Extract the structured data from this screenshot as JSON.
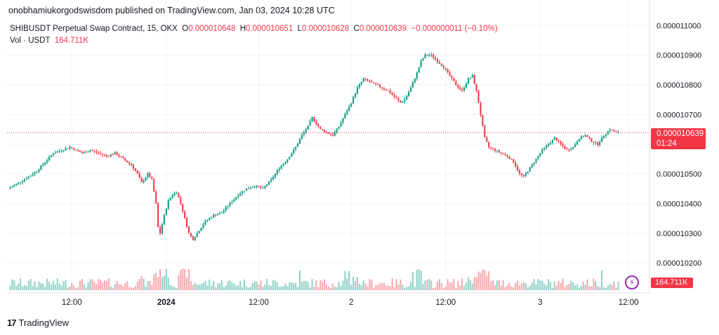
{
  "header": {
    "publisher": "onobhamiukorgodswisdom published on TradingView.com, Jan 03, 2024 10:28 UTC"
  },
  "legend": {
    "symbol": "SHIBUSDT Perpetual Swap Contract, 15, OKX",
    "o_label": "O",
    "o": "0.000010648",
    "h_label": "H",
    "h": "0.000010651",
    "l_label": "L",
    "l": "0.000010628",
    "c_label": "C",
    "c": "0.000010639",
    "change": "−0.000000011 (−0.10%)",
    "vol_label": "Vol · USDT",
    "vol": "164.711K"
  },
  "price_tag": {
    "price": "0.000010639",
    "countdown": "01:24"
  },
  "volume_tag": "164.711K",
  "brand": {
    "logo": "17",
    "name": "TradingView"
  },
  "colors": {
    "up": "#089981",
    "down": "#f23645",
    "vol_up": "#8fd2c8",
    "vol_down": "#f7a8ae",
    "grid": "#f0f3fa",
    "accent": "#9c27b0"
  },
  "icons": {
    "flash": "lightning-bolt-icon"
  },
  "chart_data": {
    "type": "candlestick",
    "x_ticks": [
      "12:00",
      "2024",
      "12:00",
      "2",
      "12:00",
      "3",
      "12:00"
    ],
    "y_ticks": [
      "0.000010200",
      "0.000010300",
      "0.000010400",
      "0.000010500",
      "0.000010600",
      "0.000010700",
      "0.000010800",
      "0.000010900",
      "0.000011000"
    ],
    "ylim": [
      1.0165e-05,
      1.1015e-05
    ],
    "grid": true,
    "last_price": 1.0639e-05,
    "price_path": [
      [
        0,
        1.045e-05
      ],
      [
        5,
        1.047e-05
      ],
      [
        10,
        1.049e-05
      ],
      [
        14,
        1.051e-05
      ],
      [
        18,
        1.054e-05
      ],
      [
        22,
        1.057e-05
      ],
      [
        26,
        1.058e-05
      ],
      [
        30,
        1.059e-05
      ],
      [
        36,
        1.057e-05
      ],
      [
        40,
        1.058e-05
      ],
      [
        44,
        1.057e-05
      ],
      [
        48,
        1.056e-05
      ],
      [
        52,
        1.057e-05
      ],
      [
        56,
        1.055e-05
      ],
      [
        60,
        1.053e-05
      ],
      [
        63,
        1.05e-05
      ],
      [
        65,
        1.047e-05
      ],
      [
        68,
        1.05e-05
      ],
      [
        70,
        1.048e-05
      ],
      [
        72,
        1.04e-05
      ],
      [
        73,
        1.032e-05
      ],
      [
        74,
        1.03e-05
      ],
      [
        76,
        1.036e-05
      ],
      [
        78,
        1.041e-05
      ],
      [
        80,
        1.043e-05
      ],
      [
        82,
        1.044e-05
      ],
      [
        84,
        1.04e-05
      ],
      [
        86,
        1.035e-05
      ],
      [
        88,
        1.03e-05
      ],
      [
        90,
        1.028e-05
      ],
      [
        92,
        1.03e-05
      ],
      [
        94,
        1.032e-05
      ],
      [
        96,
        1.034e-05
      ],
      [
        100,
        1.036e-05
      ],
      [
        104,
        1.037e-05
      ],
      [
        108,
        1.04e-05
      ],
      [
        112,
        1.043e-05
      ],
      [
        116,
        1.045e-05
      ],
      [
        120,
        1.046e-05
      ],
      [
        124,
        1.045e-05
      ],
      [
        128,
        1.048e-05
      ],
      [
        132,
        1.052e-05
      ],
      [
        136,
        1.055e-05
      ],
      [
        140,
        1.059e-05
      ],
      [
        143,
        1.063e-05
      ],
      [
        146,
        1.066e-05
      ],
      [
        148,
        1.069e-05
      ],
      [
        150,
        1.067e-05
      ],
      [
        152,
        1.065e-05
      ],
      [
        155,
        1.064e-05
      ],
      [
        158,
        1.063e-05
      ],
      [
        161,
        1.066e-05
      ],
      [
        164,
        1.07e-05
      ],
      [
        167,
        1.074e-05
      ],
      [
        170,
        1.079e-05
      ],
      [
        173,
        1.082e-05
      ],
      [
        176,
        1.081e-05
      ],
      [
        179,
        1.08e-05
      ],
      [
        182,
        1.079e-05
      ],
      [
        185,
        1.078e-05
      ],
      [
        188,
        1.076e-05
      ],
      [
        191,
        1.074e-05
      ],
      [
        193,
        1.075e-05
      ],
      [
        196,
        1.079e-05
      ],
      [
        199,
        1.084e-05
      ],
      [
        201,
        1.088e-05
      ],
      [
        203,
        1.09e-05
      ],
      [
        206,
        1.09e-05
      ],
      [
        209,
        1.088e-05
      ],
      [
        212,
        1.086e-05
      ],
      [
        215,
        1.083e-05
      ],
      [
        218,
        1.08e-05
      ],
      [
        221,
        1.078e-05
      ],
      [
        224,
        1.082e-05
      ],
      [
        226,
        1.083e-05
      ],
      [
        228,
        1.078e-05
      ],
      [
        230,
        1.07e-05
      ],
      [
        232,
        1.062e-05
      ],
      [
        234,
        1.059e-05
      ],
      [
        237,
        1.058e-05
      ],
      [
        240,
        1.057e-05
      ],
      [
        243,
        1.056e-05
      ],
      [
        246,
        1.054e-05
      ],
      [
        249,
        1.05e-05
      ],
      [
        251,
        1.049e-05
      ],
      [
        254,
        1.052e-05
      ],
      [
        257,
        1.055e-05
      ],
      [
        260,
        1.058e-05
      ],
      [
        263,
        1.06e-05
      ],
      [
        266,
        1.062e-05
      ],
      [
        269,
        1.06e-05
      ],
      [
        272,
        1.058e-05
      ],
      [
        275,
        1.059e-05
      ],
      [
        278,
        1.062e-05
      ],
      [
        281,
        1.063e-05
      ],
      [
        284,
        1.061e-05
      ],
      [
        287,
        1.06e-05
      ],
      [
        290,
        1.063e-05
      ],
      [
        293,
        1.065e-05
      ],
      [
        296,
        1.0639e-05
      ]
    ]
  }
}
